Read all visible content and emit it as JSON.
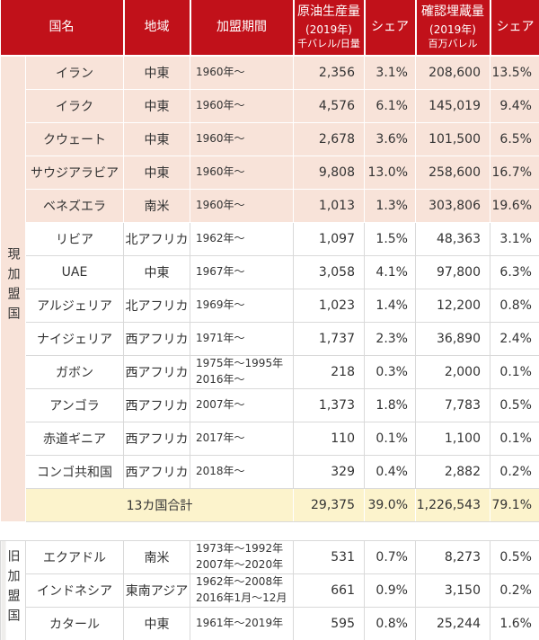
{
  "header": {
    "country_label": "国名",
    "region_label": "地域",
    "period_label": "加盟期間",
    "production_label": {
      "line1": "原油生産量",
      "line2": "(2019年)",
      "line3": "千バレル/日量"
    },
    "production_share_label": "シェア",
    "reserves_label": {
      "line1": "確認埋蔵量",
      "line2": "(2019年)",
      "line3": "百万バレル"
    },
    "reserves_share_label": "シェア"
  },
  "colors": {
    "header_bg": "#c1111a",
    "header_text": "#ffffff",
    "founding_row_bg": "#f8e3d9",
    "total_row_bg": "#fcf3cc",
    "border": "#d9d9d9",
    "body_text": "#333333",
    "left_gutter": "#efeeec"
  },
  "chart_data": {
    "type": "table",
    "columns": [
      "国名",
      "地域",
      "加盟期間",
      "原油生産量 (2019年) 千バレル/日量",
      "シェア",
      "確認埋蔵量 (2019年) 百万バレル",
      "シェア"
    ],
    "sections": [
      {
        "id": "current",
        "label": "現加盟国",
        "rows": [
          {
            "country": "イラン",
            "region": "中東",
            "period": [
              "1960年～"
            ],
            "production": "2,356",
            "production_share": "3.1%",
            "reserves": "208,600",
            "reserves_share": "13.5%",
            "founding": true
          },
          {
            "country": "イラク",
            "region": "中東",
            "period": [
              "1960年～"
            ],
            "production": "4,576",
            "production_share": "6.1%",
            "reserves": "145,019",
            "reserves_share": "9.4%",
            "founding": true
          },
          {
            "country": "クウェート",
            "region": "中東",
            "period": [
              "1960年～"
            ],
            "production": "2,678",
            "production_share": "3.6%",
            "reserves": "101,500",
            "reserves_share": "6.5%",
            "founding": true
          },
          {
            "country": "サウジアラビア",
            "region": "中東",
            "period": [
              "1960年～"
            ],
            "production": "9,808",
            "production_share": "13.0%",
            "reserves": "258,600",
            "reserves_share": "16.7%",
            "founding": true
          },
          {
            "country": "ベネズエラ",
            "region": "南米",
            "period": [
              "1960年～"
            ],
            "production": "1,013",
            "production_share": "1.3%",
            "reserves": "303,806",
            "reserves_share": "19.6%",
            "founding": true
          },
          {
            "country": "リビア",
            "region": "北アフリカ",
            "period": [
              "1962年～"
            ],
            "production": "1,097",
            "production_share": "1.5%",
            "reserves": "48,363",
            "reserves_share": "3.1%",
            "founding": false
          },
          {
            "country": "UAE",
            "region": "中東",
            "period": [
              "1967年～"
            ],
            "production": "3,058",
            "production_share": "4.1%",
            "reserves": "97,800",
            "reserves_share": "6.3%",
            "founding": false
          },
          {
            "country": "アルジェリア",
            "region": "北アフリカ",
            "period": [
              "1969年～"
            ],
            "production": "1,023",
            "production_share": "1.4%",
            "reserves": "12,200",
            "reserves_share": "0.8%",
            "founding": false
          },
          {
            "country": "ナイジェリア",
            "region": "西アフリカ",
            "period": [
              "1971年～"
            ],
            "production": "1,737",
            "production_share": "2.3%",
            "reserves": "36,890",
            "reserves_share": "2.4%",
            "founding": false
          },
          {
            "country": "ガボン",
            "region": "西アフリカ",
            "period": [
              "1975年～1995年",
              "2016年～"
            ],
            "production": "218",
            "production_share": "0.3%",
            "reserves": "2,000",
            "reserves_share": "0.1%",
            "founding": false
          },
          {
            "country": "アンゴラ",
            "region": "西アフリカ",
            "period": [
              "2007年～"
            ],
            "production": "1,373",
            "production_share": "1.8%",
            "reserves": "7,783",
            "reserves_share": "0.5%",
            "founding": false
          },
          {
            "country": "赤道ギニア",
            "region": "西アフリカ",
            "period": [
              "2017年～"
            ],
            "production": "110",
            "production_share": "0.1%",
            "reserves": "1,100",
            "reserves_share": "0.1%",
            "founding": false
          },
          {
            "country": "コンゴ共和国",
            "region": "西アフリカ",
            "period": [
              "2018年～"
            ],
            "production": "329",
            "production_share": "0.4%",
            "reserves": "2,882",
            "reserves_share": "0.2%",
            "founding": false
          }
        ],
        "total": {
          "label": "13カ国合計",
          "production": "29,375",
          "production_share": "39.0%",
          "reserves": "1,226,543",
          "reserves_share": "79.1%"
        }
      },
      {
        "id": "former",
        "label": "旧加盟国",
        "rows": [
          {
            "country": "エクアドル",
            "region": "南米",
            "period": [
              "1973年～1992年",
              "2007年～2020年"
            ],
            "production": "531",
            "production_share": "0.7%",
            "reserves": "8,273",
            "reserves_share": "0.5%",
            "founding": false
          },
          {
            "country": "インドネシア",
            "region": "東南アジア",
            "period": [
              "1962年～2008年",
              "2016年1月～12月"
            ],
            "production": "661",
            "production_share": "0.9%",
            "reserves": "3,150",
            "reserves_share": "0.2%",
            "founding": false
          },
          {
            "country": "カタール",
            "region": "中東",
            "period": [
              "1961年～2019年"
            ],
            "production": "595",
            "production_share": "0.8%",
            "reserves": "25,244",
            "reserves_share": "1.6%",
            "founding": false
          }
        ]
      }
    ]
  }
}
